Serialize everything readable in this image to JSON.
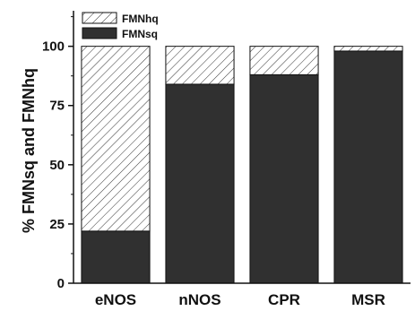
{
  "chart_data": {
    "type": "bar",
    "stacked": true,
    "normalized_to": 100,
    "categories": [
      "eNOS",
      "nNOS",
      "CPR",
      "MSR"
    ],
    "series": [
      {
        "name": "FMNsq",
        "values": [
          22,
          84,
          88,
          98
        ],
        "fill": "solid",
        "color": "#303030"
      },
      {
        "name": "FMNhq",
        "values": [
          78,
          16,
          12,
          2
        ],
        "fill": "hatched",
        "color": "#ffffff"
      }
    ],
    "xlabel": "",
    "ylabel": "% FMNsq and FMNhq",
    "ylim": [
      0,
      115
    ],
    "yticks": [
      0,
      25,
      50,
      75,
      100
    ],
    "grid": false,
    "legend": {
      "placement": "top-left",
      "entries": [
        "FMNhq",
        "FMNsq"
      ]
    }
  }
}
